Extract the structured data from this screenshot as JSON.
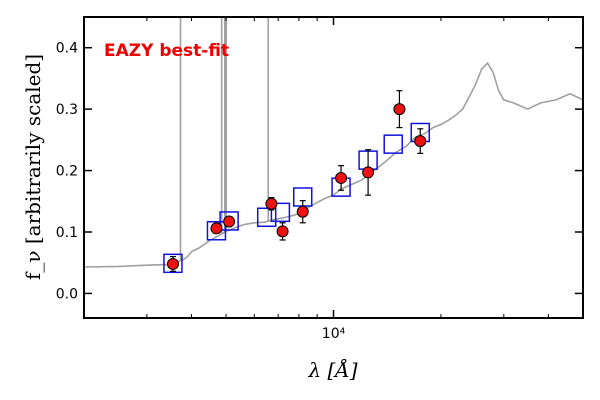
{
  "chart_data": {
    "type": "scatter",
    "annotation": "EAZY best-fit",
    "xlabel": "λ [Å]",
    "ylabel": "f_ν [arbitrarily scaled]",
    "xscale": "log",
    "xlim": [
      2000,
      50000
    ],
    "ylim": [
      -0.04,
      0.45
    ],
    "yticks": [
      0.0,
      0.1,
      0.2,
      0.3,
      0.4
    ],
    "ytick_labels": [
      "0.0",
      "0.1",
      "0.2",
      "0.3",
      "0.4"
    ],
    "xtick_labels": [
      {
        "x": 10000,
        "label": "10⁴"
      }
    ],
    "colors": {
      "model": "#a0a0a0",
      "observed_face": "#ee1111",
      "model_photometry": "#1111dd",
      "annotation": "#ee0000",
      "errorbar": "#000000"
    },
    "observed": {
      "x": [
        3550,
        4700,
        5100,
        6700,
        7200,
        8200,
        10500,
        12500,
        15300,
        17500
      ],
      "y": [
        0.048,
        0.106,
        0.117,
        0.146,
        0.101,
        0.133,
        0.188,
        0.197,
        0.3,
        0.248
      ],
      "err": [
        0.012,
        0.008,
        0.008,
        0.01,
        0.014,
        0.018,
        0.02,
        0.037,
        0.03,
        0.02
      ]
    },
    "model_photometry": {
      "x": [
        3550,
        4700,
        5100,
        6500,
        7100,
        8200,
        10500,
        12500,
        14700,
        17500
      ],
      "y": [
        0.049,
        0.102,
        0.118,
        0.124,
        0.132,
        0.157,
        0.173,
        0.217,
        0.243,
        0.262
      ]
    },
    "model_curve": {
      "x": [
        2000,
        2500,
        3000,
        3400,
        3600,
        3800,
        3900,
        4000,
        4200,
        4500,
        4800,
        5000,
        5300,
        5600,
        6000,
        6400,
        6800,
        7500,
        8000,
        8500,
        9000,
        9500,
        10000,
        10500,
        11000,
        11500,
        12000,
        13000,
        14000,
        15000,
        16000,
        17000,
        18000,
        19000,
        20000,
        21000,
        22000,
        23000,
        24000,
        25000,
        26000,
        27000,
        28000,
        29000,
        30000,
        32000,
        35000,
        38000,
        42000,
        46000,
        50000
      ],
      "y": [
        0.043,
        0.044,
        0.046,
        0.047,
        0.05,
        0.055,
        0.06,
        0.068,
        0.074,
        0.086,
        0.095,
        0.101,
        0.107,
        0.112,
        0.115,
        0.116,
        0.12,
        0.125,
        0.13,
        0.14,
        0.148,
        0.155,
        0.16,
        0.17,
        0.175,
        0.18,
        0.185,
        0.2,
        0.215,
        0.23,
        0.24,
        0.255,
        0.26,
        0.27,
        0.275,
        0.282,
        0.29,
        0.3,
        0.32,
        0.34,
        0.365,
        0.375,
        0.36,
        0.33,
        0.315,
        0.31,
        0.3,
        0.31,
        0.315,
        0.325,
        0.315
      ]
    },
    "emission_lines": [
      {
        "x": 3727,
        "peak": 0.45
      },
      {
        "x": 4861,
        "peak": 0.45
      },
      {
        "x": 4959,
        "peak": 0.45
      },
      {
        "x": 5007,
        "peak": 0.45
      },
      {
        "x": 6563,
        "peak": 0.45
      }
    ]
  }
}
